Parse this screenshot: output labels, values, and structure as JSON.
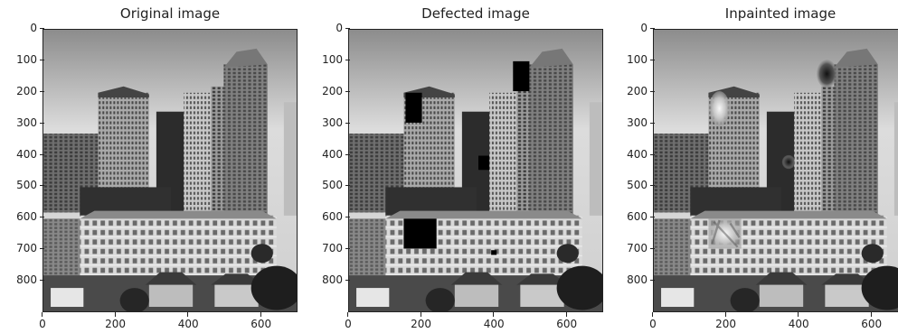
{
  "panels": [
    {
      "title": "Original image",
      "variant": "original"
    },
    {
      "title": "Defected image",
      "variant": "defected"
    },
    {
      "title": "Inpainted image",
      "variant": "inpainted"
    }
  ],
  "axes": {
    "y_ticks": [
      "0",
      "100",
      "200",
      "300",
      "400",
      "500",
      "600",
      "700",
      "800"
    ],
    "x_ticks": [
      "0",
      "200",
      "400",
      "600"
    ]
  }
}
